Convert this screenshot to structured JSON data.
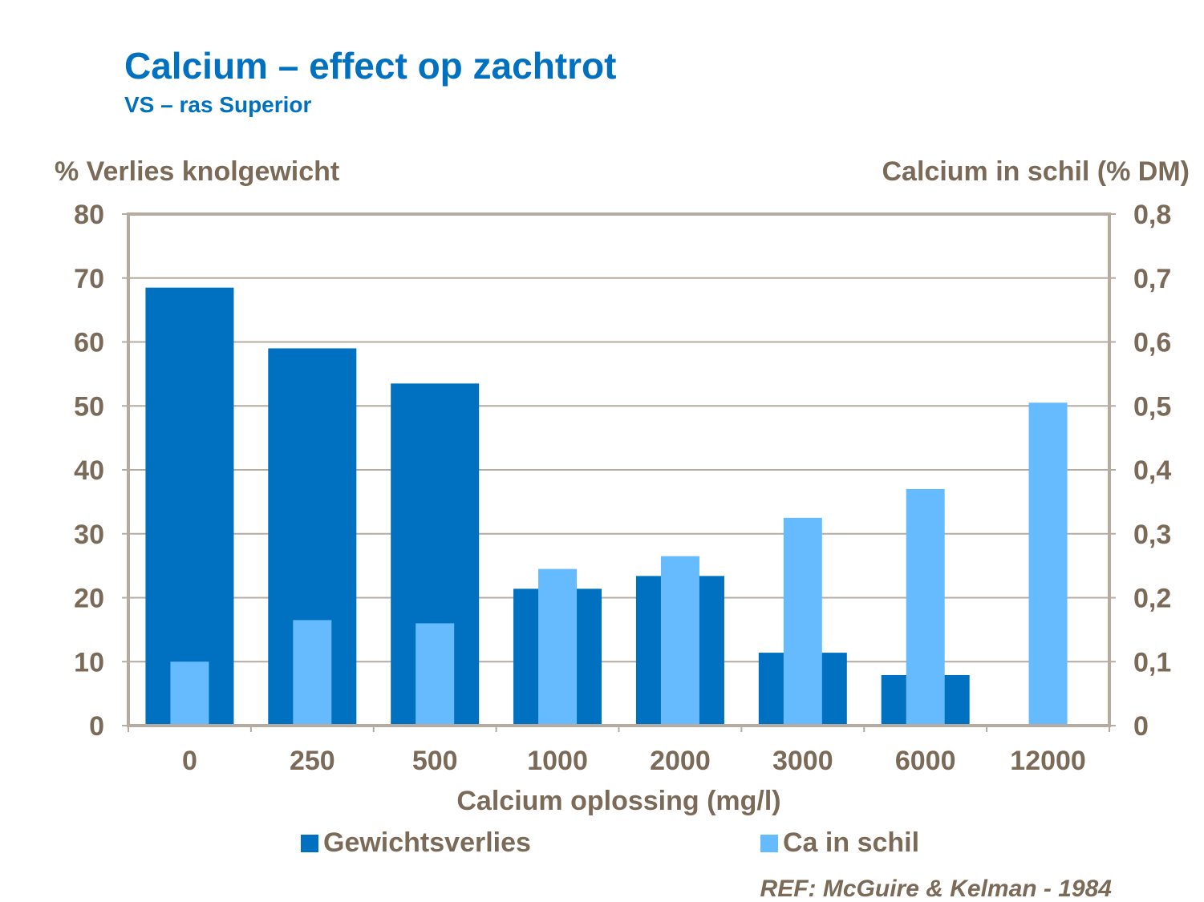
{
  "chart_data": {
    "type": "bar",
    "title": "Calcium – effect op zachtrot",
    "subtitle": "VS – ras Superior",
    "xlabel": "Calcium oplossing (mg/l)",
    "ylabel": "% Verlies knolgewicht",
    "y2label": "Calcium in schil (% DM)",
    "categories": [
      "0",
      "250",
      "500",
      "1000",
      "2000",
      "3000",
      "6000",
      "12000"
    ],
    "ylim": [
      0,
      80
    ],
    "y2lim": [
      0,
      0.8
    ],
    "yticks": [
      "0",
      "10",
      "20",
      "30",
      "40",
      "50",
      "60",
      "70",
      "80"
    ],
    "y2ticks": [
      "0",
      "0,1",
      "0,2",
      "0,3",
      "0,4",
      "0,5",
      "0,6",
      "0,7",
      "0,8"
    ],
    "grid": true,
    "legend_position": "bottom",
    "series": [
      {
        "name": "Gewichtsverlies",
        "axis": "left",
        "color": "#0070C0",
        "values": [
          68.5,
          59,
          53.5,
          21.4,
          23.4,
          11.4,
          7.9,
          0
        ]
      },
      {
        "name": "Ca in schil",
        "axis": "right",
        "color": "#66BBFF",
        "values": [
          0.1,
          0.165,
          0.16,
          0.245,
          0.265,
          0.325,
          0.37,
          0.505
        ]
      }
    ],
    "reference": "REF: McGuire & Kelman  - 1984"
  }
}
